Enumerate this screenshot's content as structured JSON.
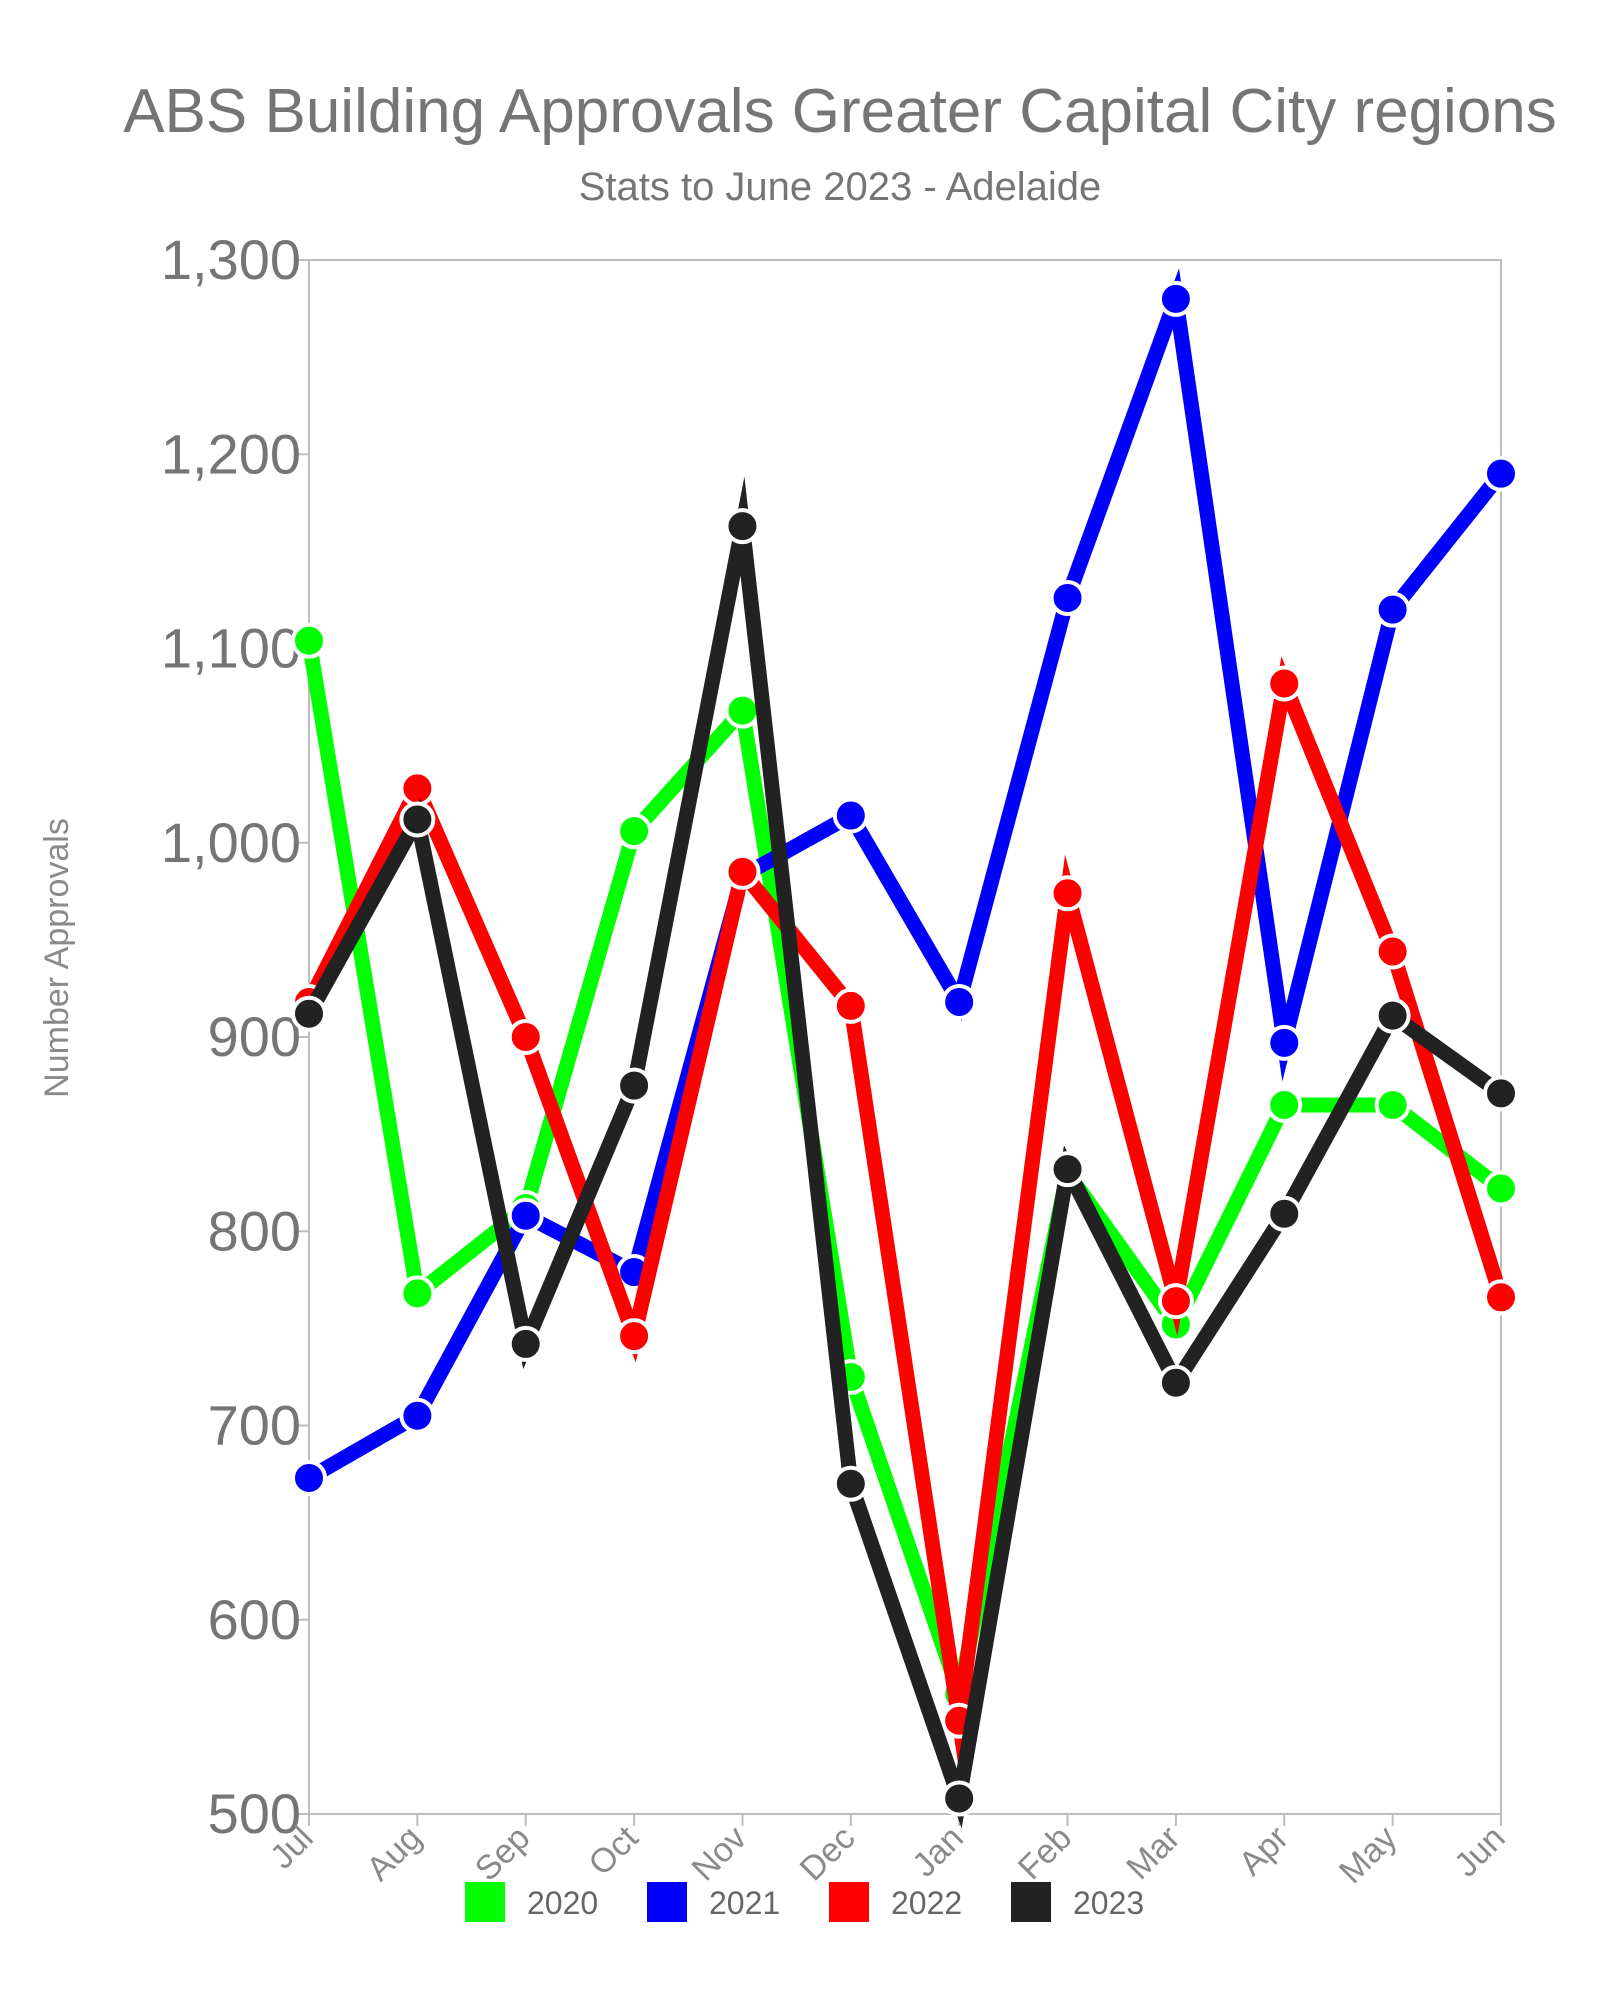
{
  "chart_data": {
    "type": "line",
    "title": "ABS Building Approvals Greater Capital City regions",
    "subtitle": "Stats to June 2023 - Adelaide",
    "xlabel": "",
    "ylabel": "Number Approvals",
    "ylim": [
      500,
      1300
    ],
    "yticks": [
      500,
      600,
      700,
      800,
      900,
      1000,
      1100,
      1200,
      1300
    ],
    "ytick_labels": [
      "500",
      "600",
      "700",
      "800",
      "900",
      "1,000",
      "1,100",
      "1,200",
      "1,300"
    ],
    "categories": [
      "Jul",
      "Aug",
      "Sep",
      "Oct",
      "Nov",
      "Dec",
      "Jan",
      "Feb",
      "Mar",
      "Apr",
      "May",
      "Jun"
    ],
    "grid": false,
    "legend_position": "bottom",
    "series": [
      {
        "name": "2020",
        "color": "#00ff00",
        "values": [
          1104,
          768,
          812,
          1006,
          1068,
          725,
          562,
          830,
          752,
          865,
          865,
          822
        ]
      },
      {
        "name": "2021",
        "color": "#0000ff",
        "values": [
          673,
          705,
          808,
          779,
          983,
          1014,
          918,
          1126,
          1280,
          897,
          1120,
          1190
        ]
      },
      {
        "name": "2022",
        "color": "#ff0000",
        "values": [
          918,
          1028,
          900,
          746,
          985,
          916,
          548,
          974,
          764,
          1082,
          944,
          766
        ]
      },
      {
        "name": "2023",
        "color": "#222222",
        "values": [
          912,
          1012,
          742,
          875,
          1163,
          670,
          508,
          832,
          722,
          809,
          911,
          871
        ]
      }
    ]
  }
}
